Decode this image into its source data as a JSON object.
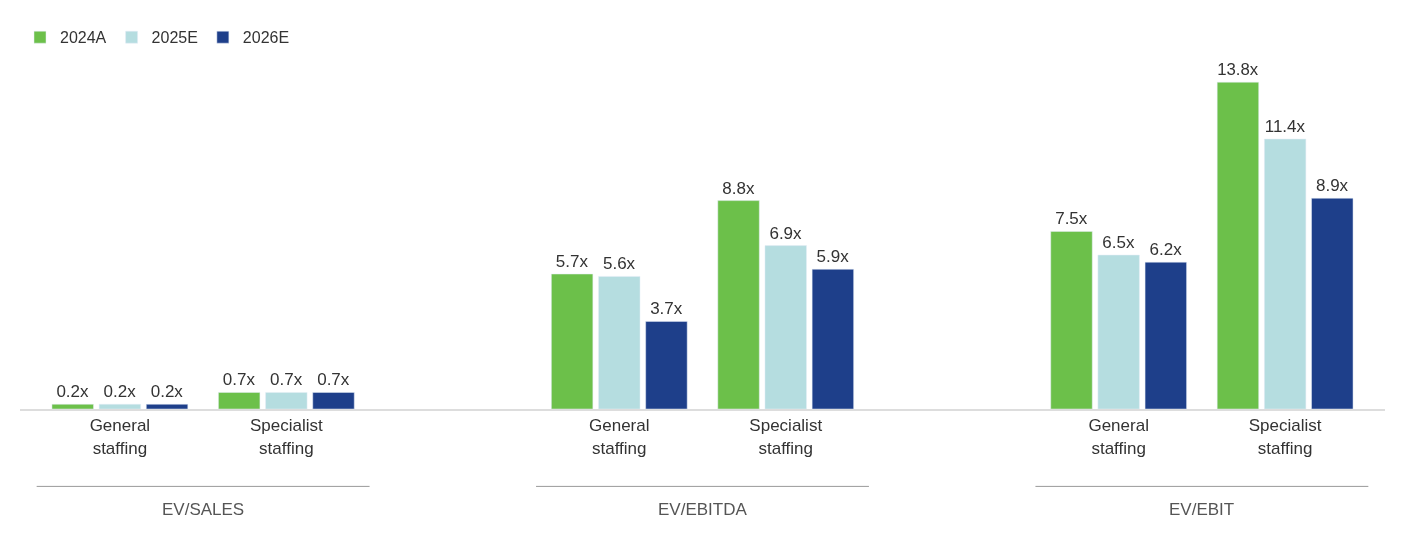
{
  "chart_data": {
    "type": "bar",
    "categories": [
      "General staffing",
      "Specialist staffing",
      null,
      "General staffing",
      "Specialist staffing",
      null,
      "General staffing",
      "Specialist staffing"
    ],
    "series": [
      {
        "name": "2024A",
        "color": "#6cc04a",
        "values": [
          0.2,
          0.7,
          null,
          5.7,
          8.8,
          null,
          7.5,
          13.8
        ],
        "value_labels": [
          "0.2x",
          "0.7x",
          null,
          "5.7x",
          "8.8x",
          null,
          "7.5x",
          "13.8x"
        ]
      },
      {
        "name": "2025E",
        "color": "#b5dde0",
        "values": [
          0.2,
          0.7,
          null,
          5.6,
          6.9,
          null,
          6.5,
          11.4
        ],
        "value_labels": [
          "0.2x",
          "0.7x",
          null,
          "5.6x",
          "6.9x",
          null,
          "6.5x",
          "11.4x"
        ]
      },
      {
        "name": "2026E",
        "color": "#1e3f8a",
        "values": [
          0.2,
          0.7,
          null,
          3.7,
          5.9,
          null,
          6.2,
          8.9
        ],
        "value_labels": [
          "0.2x",
          "0.7x",
          null,
          "3.7x",
          "5.9x",
          null,
          "6.2x",
          "8.9x"
        ]
      }
    ],
    "annotations": [
      "EV/SALES",
      "EV/EBITDA",
      "EV/EBIT"
    ],
    "legend": "top left"
  }
}
